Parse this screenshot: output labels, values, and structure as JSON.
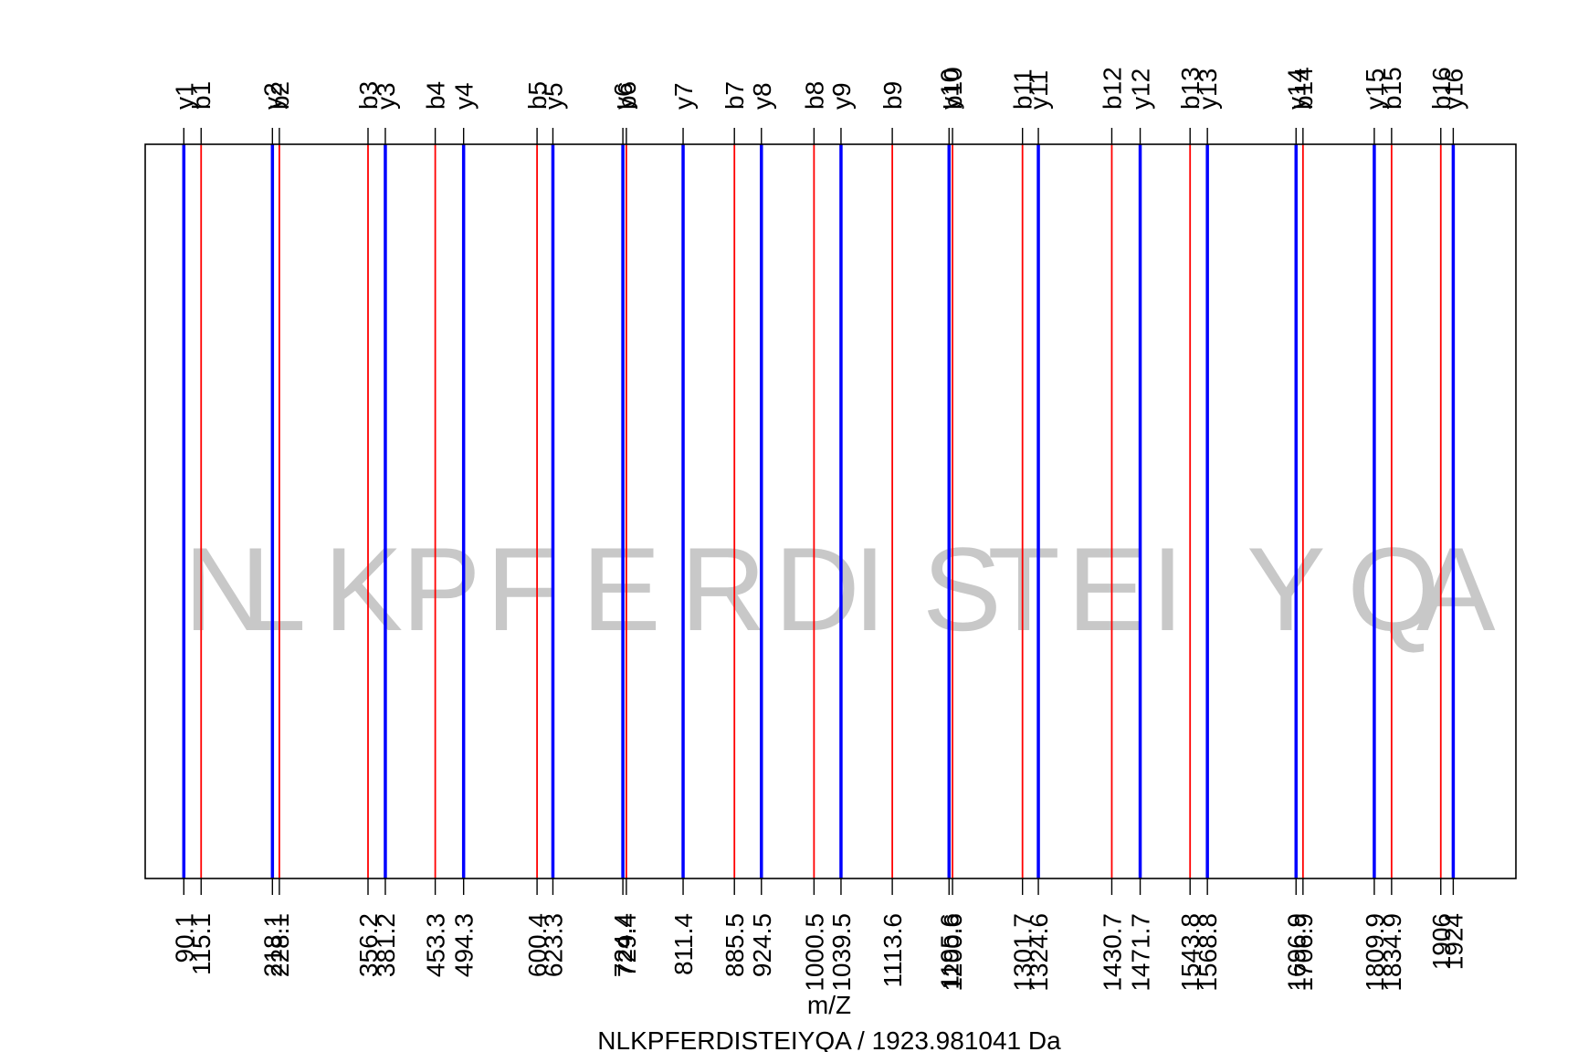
{
  "chart_data": {
    "type": "bar",
    "title": "NLKPFERDISTEIYQA / 1923.981041 Da",
    "xlabel": "m/Z",
    "ylabel": "",
    "grid": false,
    "xlim": [
      34.3,
      2014.5
    ],
    "sequence": "NLKPFERDISTEIYQA",
    "series": [
      {
        "name": "b",
        "color": "#ff0000",
        "ions": [
          "b1",
          "b2",
          "b3",
          "b4",
          "b5",
          "b6",
          "b7",
          "b8",
          "b9",
          "b10",
          "b11",
          "b12",
          "b13",
          "b14",
          "b15",
          "b16"
        ],
        "x": [
          115.1,
          228.1,
          356.2,
          453.3,
          600.4,
          729.4,
          885.5,
          1000.5,
          1113.6,
          1200.6,
          1301.7,
          1430.7,
          1543.8,
          1706.9,
          1834.9,
          1906
        ],
        "tick_labels": [
          "115.1",
          "228.1",
          "356.2",
          "453.3",
          "600.4",
          "729.4",
          "885.5",
          "1000.5",
          "1113.6",
          "1200.6",
          "1301.7",
          "1430.7",
          "1543.8",
          "1706.9",
          "1834.9",
          "1906"
        ]
      },
      {
        "name": "y",
        "color": "#0000ff",
        "ions": [
          "y1",
          "y2",
          "y3",
          "y4",
          "y5",
          "y6",
          "y7",
          "y8",
          "y9",
          "y10",
          "y11",
          "y12",
          "y13",
          "y14",
          "y15",
          "y16"
        ],
        "x": [
          90.1,
          218.1,
          381.2,
          494.3,
          623.3,
          724.4,
          811.4,
          924.5,
          1039.5,
          1195.6,
          1324.6,
          1471.7,
          1568.8,
          1696.9,
          1809.9,
          1924
        ],
        "tick_labels": [
          "90.1",
          "218.1",
          "381.2",
          "494.3",
          "623.3",
          "724.4",
          "811.4",
          "924.5",
          "1039.5",
          "1195.6",
          "1324.6",
          "1471.7",
          "1568.8",
          "1696.9",
          "1809.9",
          "1924"
        ]
      }
    ],
    "residues": [
      {
        "letter": "N",
        "x": 90.1
      },
      {
        "letter": "L",
        "x": 171.6
      },
      {
        "letter": "K",
        "x": 292.2
      },
      {
        "letter": "P",
        "x": 404.8
      },
      {
        "letter": "F",
        "x": 526.8
      },
      {
        "letter": "E",
        "x": 664.9
      },
      {
        "letter": "R",
        "x": 807.5
      },
      {
        "letter": "D",
        "x": 943.0
      },
      {
        "letter": "I",
        "x": 1057.1
      },
      {
        "letter": "S",
        "x": 1157.1
      },
      {
        "letter": "T",
        "x": 1251.2
      },
      {
        "letter": "E",
        "x": 1366.2
      },
      {
        "letter": "I",
        "x": 1487.3
      },
      {
        "letter": "Y",
        "x": 1625.4
      },
      {
        "letter": "Q",
        "x": 1770.9
      },
      {
        "letter": "A",
        "x": 1870.5
      }
    ]
  }
}
